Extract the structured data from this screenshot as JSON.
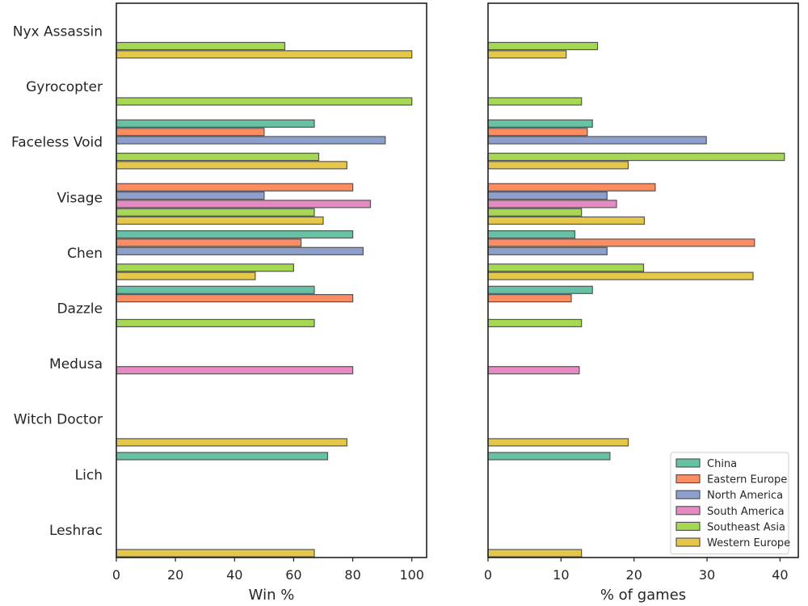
{
  "chart_data": {
    "type": "bar",
    "orientation": "horizontal",
    "categories": [
      "Nyx Assassin",
      "Gyrocopter",
      "Faceless Void",
      "Visage",
      "Chen",
      "Dazzle",
      "Medusa",
      "Witch Doctor",
      "Lich",
      "Leshrac"
    ],
    "series_colors": {
      "China": "#66c2a5",
      "Eastern Europe": "#fc8d62",
      "North America": "#8da0cb",
      "South America": "#e78ac3",
      "Southeast Asia": "#a6d854",
      "Western Europe": "#e5c84a"
    },
    "panels": [
      {
        "xlabel": "Win %",
        "xlim": [
          0,
          105
        ],
        "xticks": [
          0,
          20,
          40,
          60,
          80,
          100
        ],
        "series": [
          {
            "name": "China",
            "values": [
              null,
              null,
              67,
              null,
              80,
              67,
              null,
              null,
              71.5,
              null
            ]
          },
          {
            "name": "Eastern Europe",
            "values": [
              null,
              null,
              50,
              80,
              62.5,
              80,
              null,
              null,
              null,
              null
            ]
          },
          {
            "name": "North America",
            "values": [
              null,
              null,
              91,
              50,
              83.5,
              null,
              null,
              null,
              null,
              null
            ]
          },
          {
            "name": "South America",
            "values": [
              null,
              null,
              null,
              86,
              null,
              null,
              80,
              null,
              null,
              null
            ]
          },
          {
            "name": "Southeast Asia",
            "values": [
              57,
              100,
              68.5,
              67,
              60,
              67,
              null,
              null,
              null,
              null
            ]
          },
          {
            "name": "Western Europe",
            "values": [
              100,
              null,
              78,
              70,
              47,
              null,
              null,
              78,
              null,
              67
            ]
          }
        ]
      },
      {
        "xlabel": "% of games",
        "xlim": [
          0,
          42.5
        ],
        "xticks": [
          0,
          10,
          20,
          30,
          40
        ],
        "series": [
          {
            "name": "China",
            "values": [
              null,
              null,
              14.3,
              null,
              11.9,
              14.3,
              null,
              null,
              16.7,
              null
            ]
          },
          {
            "name": "Eastern Europe",
            "values": [
              null,
              null,
              13.6,
              22.9,
              36.5,
              11.4,
              null,
              null,
              null,
              null
            ]
          },
          {
            "name": "North America",
            "values": [
              null,
              null,
              29.9,
              16.3,
              16.3,
              null,
              null,
              null,
              null,
              null
            ]
          },
          {
            "name": "South America",
            "values": [
              null,
              null,
              null,
              17.6,
              null,
              null,
              12.5,
              null,
              null,
              null
            ]
          },
          {
            "name": "Southeast Asia",
            "values": [
              15,
              12.8,
              40.6,
              12.8,
              21.3,
              12.8,
              null,
              null,
              null,
              null
            ]
          },
          {
            "name": "Western Europe",
            "values": [
              10.7,
              null,
              19.2,
              21.4,
              36.3,
              null,
              null,
              19.2,
              null,
              12.8
            ]
          }
        ]
      }
    ],
    "legend": {
      "entries": [
        "China",
        "Eastern Europe",
        "North America",
        "South America",
        "Southeast Asia",
        "Western Europe"
      ],
      "location": "lower-right"
    },
    "grid": false
  }
}
